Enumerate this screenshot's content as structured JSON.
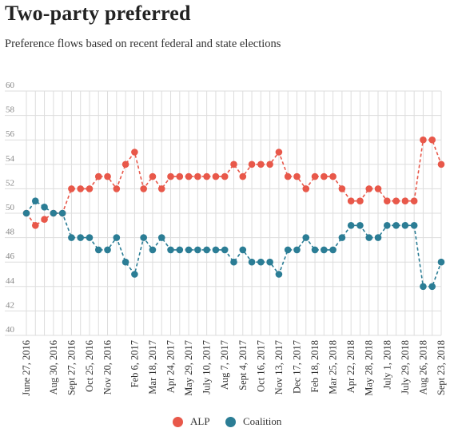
{
  "header": {
    "title": "Two-party preferred",
    "subtitle": "Preference flows based on recent federal and state elections"
  },
  "colors": {
    "alp": "#e8584a",
    "coalition": "#2b7d95",
    "grid": "#dddddd",
    "axis_text": "#888888",
    "tick_label_text": "#333333"
  },
  "chart_data": {
    "type": "line",
    "title": "Two-party preferred",
    "subtitle": "Preference flows based on recent federal and state elections",
    "xlabel": "",
    "ylabel": "",
    "ylim": [
      40,
      60
    ],
    "yticks": [
      40,
      42,
      44,
      46,
      48,
      50,
      52,
      54,
      56,
      58,
      60
    ],
    "grid": true,
    "legend_position": "bottom-center",
    "x": [
      "June 27, 2016",
      "",
      "",
      "Aug 30, 2016",
      "",
      "Sept 27, 2016",
      "",
      "Oct 25, 2016",
      "",
      "Nov 20, 2016",
      "",
      "",
      "Feb 6, 2017",
      "",
      "Mar 18, 2017",
      "",
      "Apr 24, 2017",
      "",
      "May 29, 2017",
      "",
      "July 10, 2017",
      "",
      "Aug 7, 2017",
      "",
      "Sept 4, 2017",
      "",
      "Oct 16, 2017",
      "",
      "Nov 13, 2017",
      "",
      "Dec 17, 2017",
      "",
      "Feb 18, 2018",
      "",
      "Mar 25, 2018",
      "",
      "Apr 22, 2018",
      "",
      "May 28, 2018",
      "",
      "July 1, 2018",
      "",
      "July 29, 2018",
      "",
      "Aug 26, 2018",
      "",
      "Sept 23, 2018"
    ],
    "series": [
      {
        "name": "ALP",
        "values": [
          50,
          49,
          49.5,
          50,
          50,
          52,
          52,
          52,
          53,
          53,
          52,
          54,
          55,
          52,
          53,
          52,
          53,
          53,
          53,
          53,
          53,
          53,
          53,
          54,
          53,
          54,
          54,
          54,
          55,
          53,
          53,
          52,
          53,
          53,
          53,
          52,
          51,
          51,
          52,
          52,
          51,
          51,
          51,
          51,
          56,
          56,
          54
        ]
      },
      {
        "name": "Coalition",
        "values": [
          50,
          51,
          50.5,
          50,
          50,
          48,
          48,
          48,
          47,
          47,
          48,
          46,
          45,
          48,
          47,
          48,
          47,
          47,
          47,
          47,
          47,
          47,
          47,
          46,
          47,
          46,
          46,
          46,
          45,
          47,
          47,
          48,
          47,
          47,
          47,
          48,
          49,
          49,
          48,
          48,
          49,
          49,
          49,
          49,
          44,
          44,
          46
        ]
      }
    ]
  }
}
